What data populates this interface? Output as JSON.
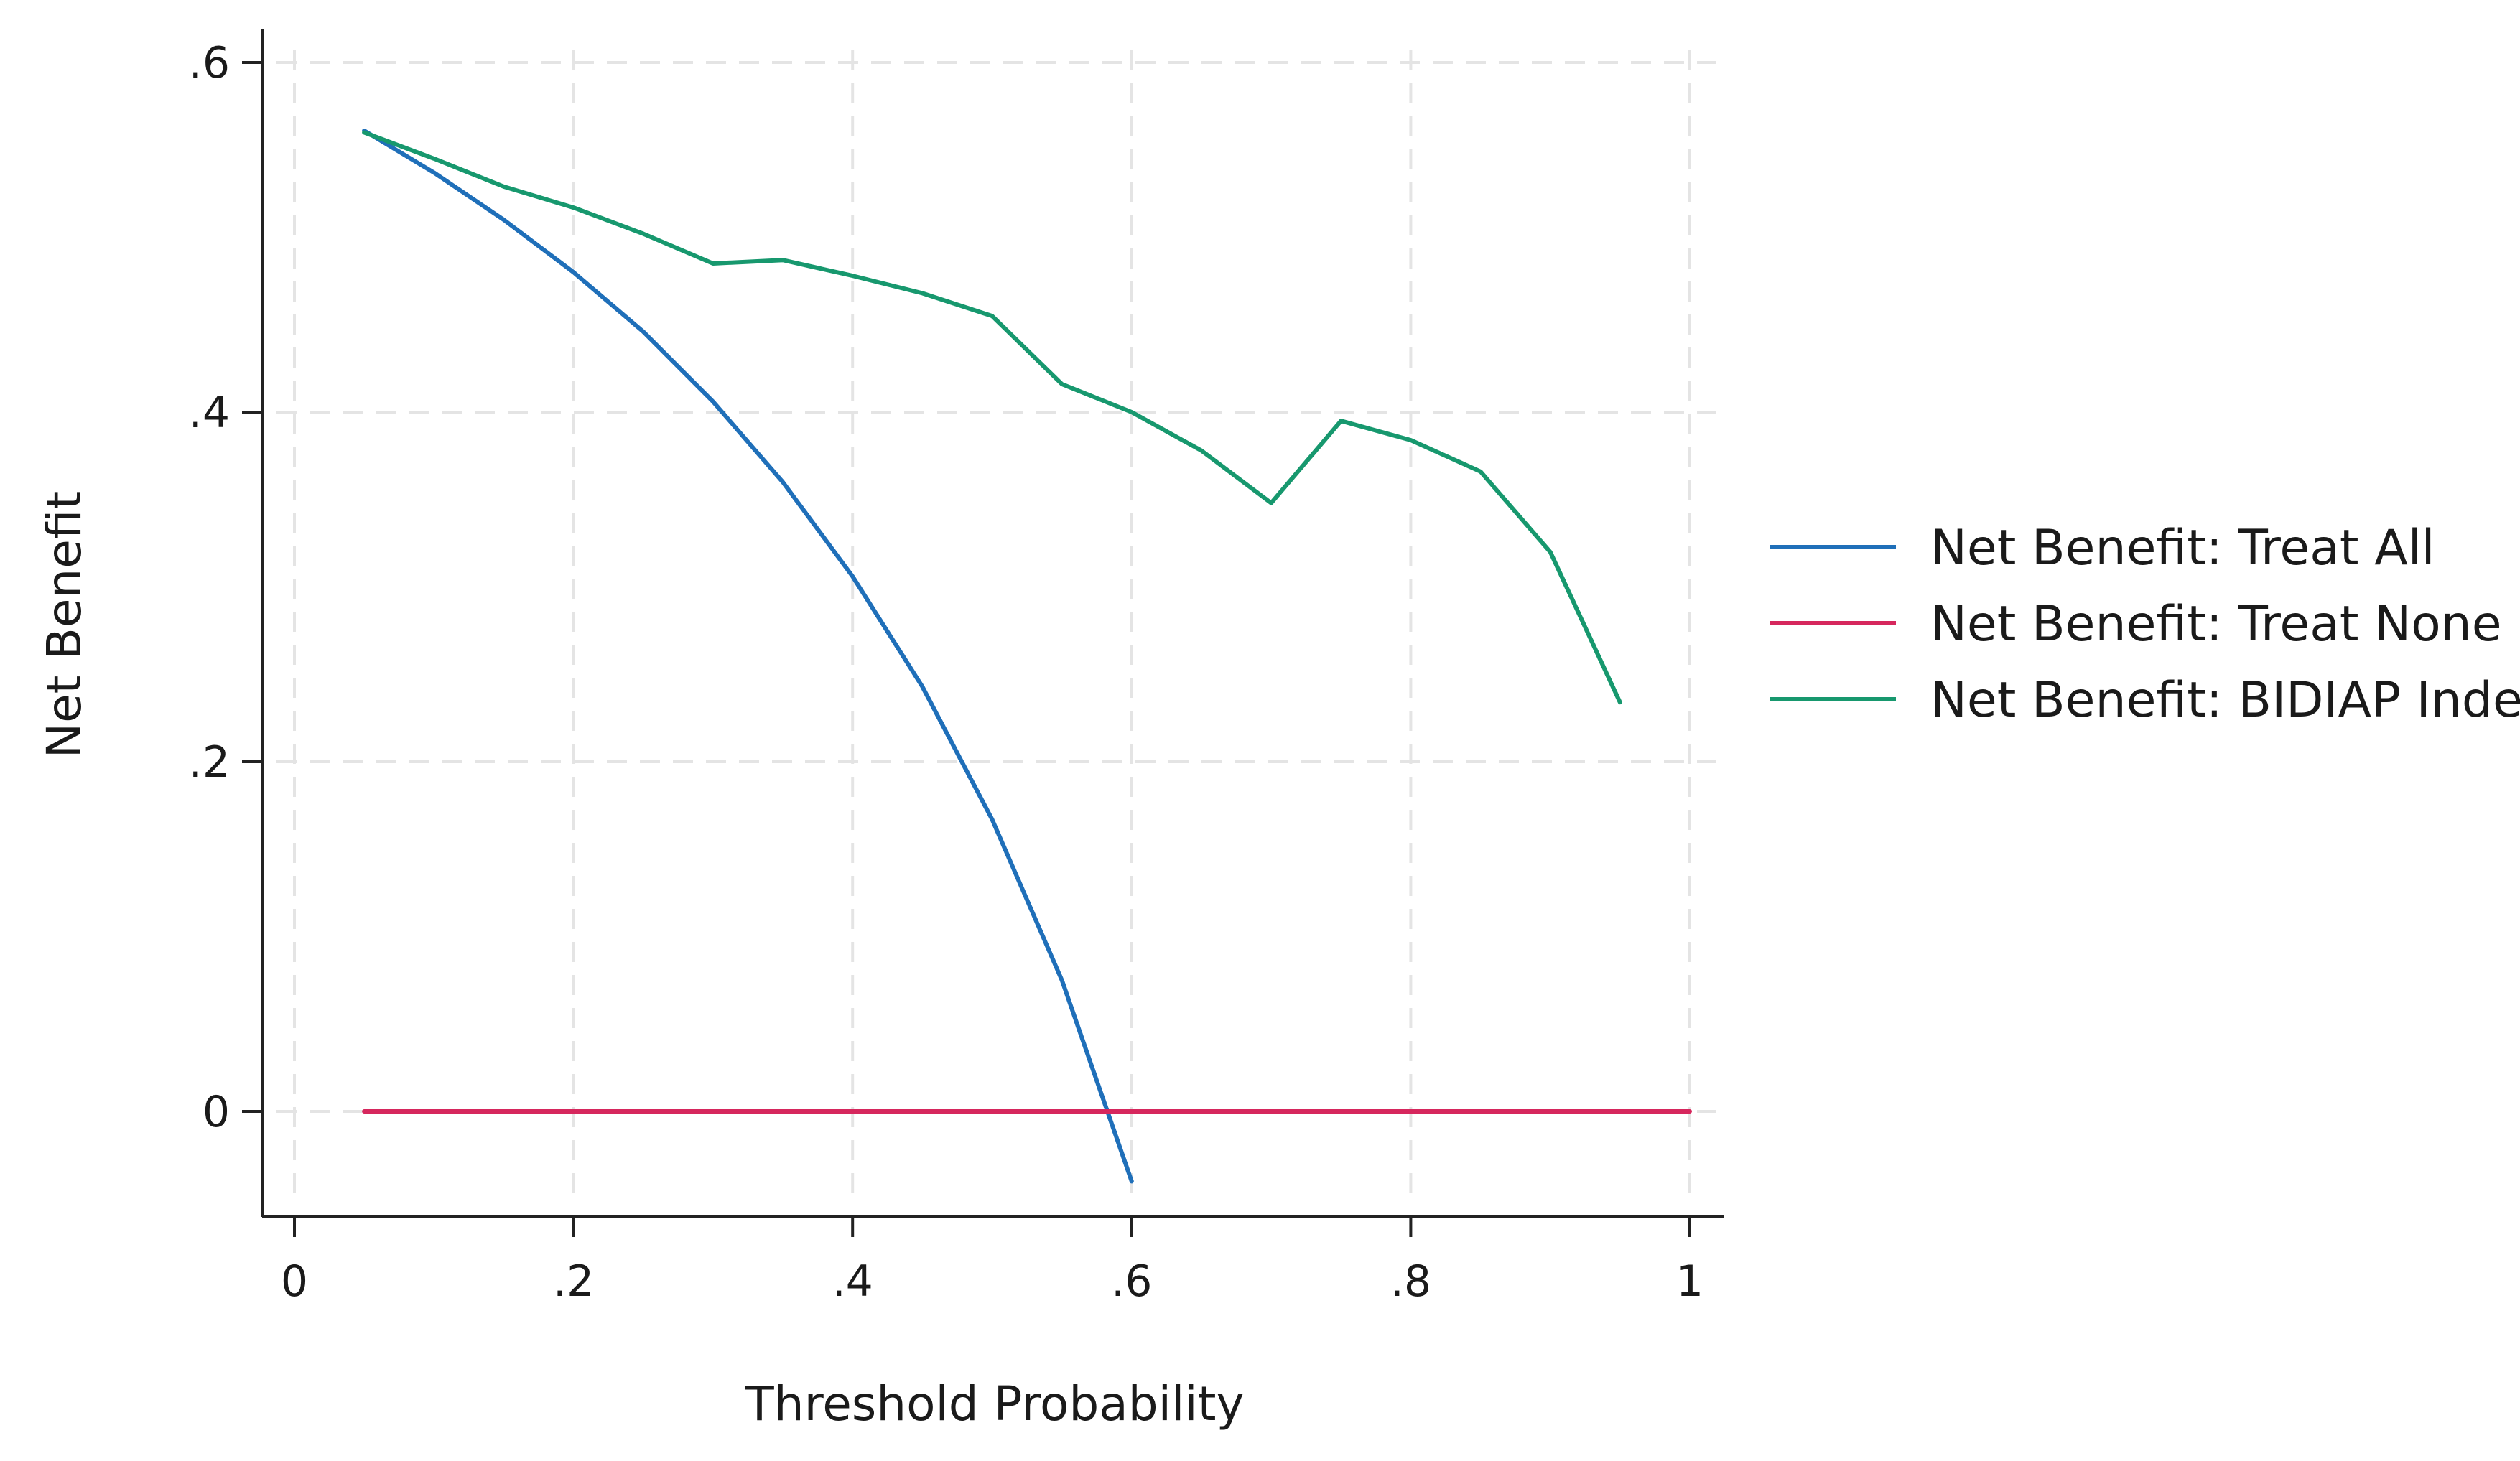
{
  "chart_data": {
    "type": "line",
    "title": "",
    "xlabel": "Threshold Probability",
    "ylabel": "Net Benefit",
    "xlim": [
      -0.025,
      1.025
    ],
    "ylim": [
      -0.075,
      0.62
    ],
    "x_ticks": [
      0,
      0.2,
      0.4,
      0.6,
      0.8,
      1
    ],
    "x_tick_labels": [
      "0",
      ".2",
      ".4",
      ".6",
      ".8",
      "1"
    ],
    "y_ticks": [
      0,
      0.2,
      0.4,
      0.6
    ],
    "y_tick_labels": [
      "0",
      ".2",
      ".4",
      ".6"
    ],
    "grid": true,
    "legend_position": "right",
    "series": [
      {
        "name": "Net Benefit: Treat All",
        "color": "#1f6fb9",
        "x": [
          0.05,
          0.1,
          0.15,
          0.2,
          0.25,
          0.3,
          0.35,
          0.4,
          0.45,
          0.5,
          0.55,
          0.6
        ],
        "y": [
          0.561,
          0.537,
          0.51,
          0.48,
          0.446,
          0.406,
          0.36,
          0.306,
          0.243,
          0.167,
          0.075,
          -0.04
        ]
      },
      {
        "name": "Net Benefit: Treat None",
        "color": "#d6275d",
        "x": [
          0.05,
          1.0
        ],
        "y": [
          0,
          0
        ]
      },
      {
        "name": "Net Benefit: BIDIAP Index",
        "color": "#17986e",
        "x": [
          0.05,
          0.1,
          0.15,
          0.2,
          0.25,
          0.3,
          0.35,
          0.4,
          0.45,
          0.5,
          0.55,
          0.6,
          0.65,
          0.7,
          0.75,
          0.8,
          0.85,
          0.9,
          0.95
        ],
        "y": [
          0.56,
          0.545,
          0.529,
          0.517,
          0.502,
          0.485,
          0.487,
          0.478,
          0.468,
          0.455,
          0.416,
          0.4,
          0.378,
          0.348,
          0.395,
          0.384,
          0.366,
          0.32,
          0.234
        ]
      }
    ]
  }
}
